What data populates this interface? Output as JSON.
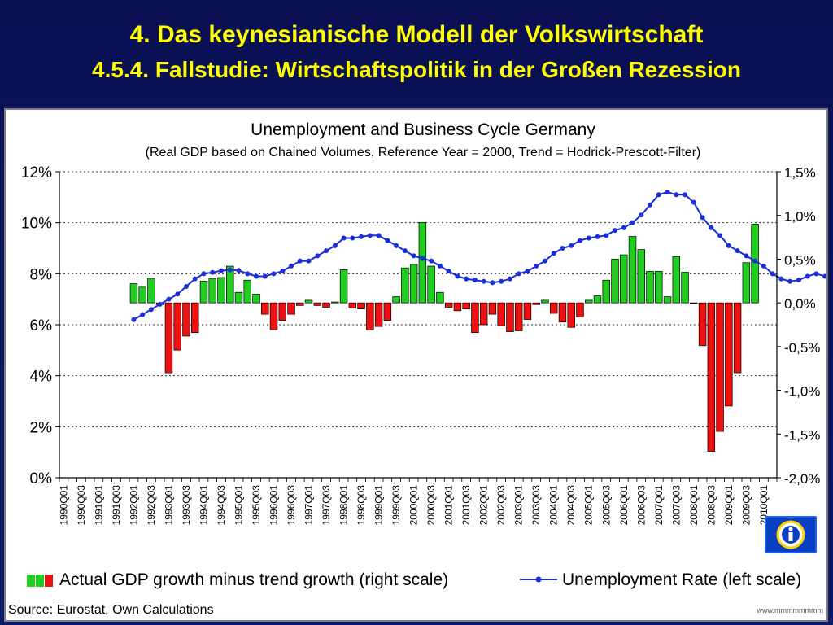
{
  "slide": {
    "title": "4. Das keynesianische Modell der Volkswirtschaft",
    "subtitle": "4.5.4.  Fallstudie: Wirtschaftspolitik in der Großen Rezession"
  },
  "chart_data": {
    "type": "bar",
    "title": "Unemployment and Business Cycle Germany",
    "subtitle": "(Real GDP based on Chained Volumes, Reference Year = 2000, Trend = Hodrick-Prescott-Filter)",
    "left_axis": {
      "ticks": [
        "0%",
        "2%",
        "4%",
        "6%",
        "8%",
        "10%",
        "12%"
      ],
      "ylim": [
        0,
        12
      ]
    },
    "right_axis": {
      "ticks": [
        "-2,0%",
        "-1,5%",
        "-1,0%",
        "-0,5%",
        "0,0%",
        "0,5%",
        "1,0%",
        "1,5%"
      ],
      "ylim": [
        -2.0,
        1.5
      ]
    },
    "x_tick_labels": [
      "1990Q01",
      "1990Q03",
      "1991Q01",
      "1991Q03",
      "1992Q01",
      "1992Q03",
      "1993Q01",
      "1993Q03",
      "1994Q01",
      "1994Q03",
      "1995Q01",
      "1995Q03",
      "1996Q01",
      "1996Q03",
      "1997Q01",
      "1997Q03",
      "1998Q01",
      "1998Q03",
      "1999Q01",
      "1999Q03",
      "2000Q01",
      "2000Q03",
      "2001Q01",
      "2001Q03",
      "2002Q01",
      "2002Q03",
      "2003Q01",
      "2003Q03",
      "2004Q01",
      "2004Q03",
      "2005Q01",
      "2005Q03",
      "2006Q01",
      "2006Q03",
      "2007Q01",
      "2007Q03",
      "2008Q01",
      "2008Q03",
      "2009Q01",
      "2009Q03",
      "2010Q01"
    ],
    "x_start_quarter": "1990Q01",
    "grid": "horizontal dotted",
    "series": [
      {
        "name": "Actual GDP growth minus trend growth (right scale)",
        "type": "bar",
        "axis": "right",
        "color_positive": "#22cc22",
        "color_negative": "#ee1111",
        "start_quarter": "1992Q01",
        "values": [
          0.22,
          0.18,
          0.28,
          -0.02,
          -0.8,
          -0.54,
          -0.38,
          -0.34,
          0.25,
          0.28,
          0.29,
          0.42,
          0.12,
          0.26,
          0.1,
          -0.13,
          -0.31,
          -0.2,
          -0.13,
          -0.03,
          0.03,
          -0.03,
          -0.05,
          0.01,
          0.38,
          -0.06,
          -0.07,
          -0.31,
          -0.27,
          -0.2,
          0.07,
          0.4,
          0.44,
          0.92,
          0.42,
          0.12,
          -0.05,
          -0.09,
          -0.07,
          -0.34,
          -0.25,
          -0.13,
          -0.26,
          -0.33,
          -0.32,
          -0.19,
          -0.02,
          0.03,
          -0.12,
          -0.22,
          -0.28,
          -0.16,
          0.03,
          0.08,
          0.26,
          0.5,
          0.55,
          0.76,
          0.61,
          0.36,
          0.36,
          0.07,
          0.53,
          0.35,
          0.0,
          -0.49,
          -1.7,
          -1.47,
          -1.18,
          -0.8,
          0.46,
          0.9
        ]
      },
      {
        "name": "Unemployment Rate (left scale)",
        "type": "line",
        "axis": "left",
        "color": "#1a2fd9",
        "start_quarter": "1992Q01",
        "values": [
          6.2,
          6.4,
          6.6,
          6.8,
          7.0,
          7.2,
          7.5,
          7.8,
          8.0,
          8.05,
          8.12,
          8.15,
          8.13,
          8.0,
          7.9,
          7.9,
          8.0,
          8.1,
          8.3,
          8.5,
          8.5,
          8.7,
          8.9,
          9.1,
          9.4,
          9.4,
          9.45,
          9.5,
          9.5,
          9.3,
          9.1,
          8.9,
          8.7,
          8.6,
          8.5,
          8.3,
          8.1,
          7.9,
          7.8,
          7.75,
          7.7,
          7.65,
          7.7,
          7.8,
          8.0,
          8.1,
          8.3,
          8.5,
          8.8,
          9.0,
          9.1,
          9.3,
          9.4,
          9.45,
          9.5,
          9.7,
          9.8,
          10.0,
          10.3,
          10.7,
          11.1,
          11.2,
          11.1,
          11.1,
          10.8,
          10.2,
          9.8,
          9.5,
          9.1,
          8.9,
          8.7,
          8.5,
          8.3,
          8.0,
          7.8,
          7.7,
          7.75,
          7.9,
          8.0,
          7.9,
          7.7,
          7.6
        ]
      }
    ],
    "legend": [
      {
        "label": "Actual GDP growth minus trend growth (right scale)"
      },
      {
        "label": "Unemployment Rate (left scale)"
      }
    ],
    "legend_position": "bottom",
    "source": "Source: Eurostat, Own Calculations"
  }
}
